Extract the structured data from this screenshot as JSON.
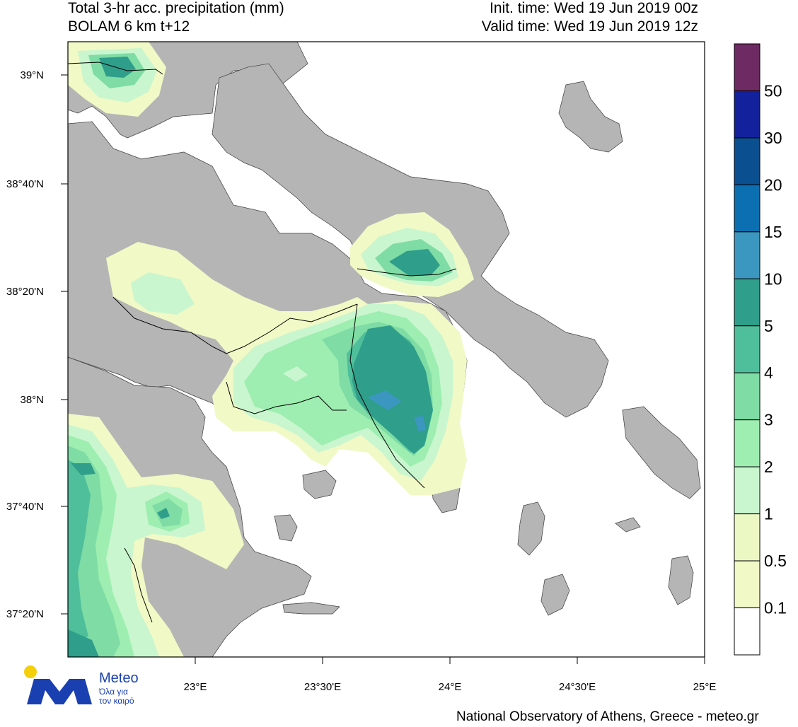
{
  "header": {
    "title_line1": "Total 3-hr acc. precipitation (mm)",
    "title_line2": "BOLAM 6 km t+12",
    "init_time": "Init. time: Wed 19 Jun 2019 00z",
    "valid_time": "Valid time: Wed 19 Jun 2019 12z"
  },
  "axes": {
    "lat_labels": [
      "39°N",
      "38°40'N",
      "38°20'N",
      "38°N",
      "37°40'N",
      "37°20'N"
    ],
    "lon_labels": [
      "23°E",
      "23°30'E",
      "24°E",
      "24°30'E",
      "25°E"
    ]
  },
  "colorbar": {
    "labels": [
      "50",
      "30",
      "20",
      "15",
      "10",
      "5",
      "4",
      "3",
      "2",
      "1",
      "0.5",
      "0.1"
    ],
    "colors": [
      "#6e2a62",
      "#13229c",
      "#0a4f8f",
      "#0b6fb2",
      "#3b97bf",
      "#2f9e8a",
      "#4fbf9b",
      "#7fdca5",
      "#9deeb0",
      "#c9f6cf",
      "#ebf8c3",
      "#f1f9c6",
      "#ffffff"
    ]
  },
  "map_colors": {
    "land": "#b5b5b5",
    "sea": "#ffffff",
    "lvl_01": "#f1f9c6",
    "lvl_05": "#ebf8c3",
    "lvl_1": "#c9f6cf",
    "lvl_2": "#9deeb0",
    "lvl_3": "#7fdca5",
    "lvl_4": "#4fbf9b",
    "lvl_5": "#2f9e8a",
    "lvl_10": "#3b97bf"
  },
  "logo": {
    "name": "Meteo",
    "tagline1": "Όλα για",
    "tagline2": "τον καιρό"
  },
  "footer": {
    "credit": "National Observatory of Athens, Greece - meteo.gr"
  }
}
